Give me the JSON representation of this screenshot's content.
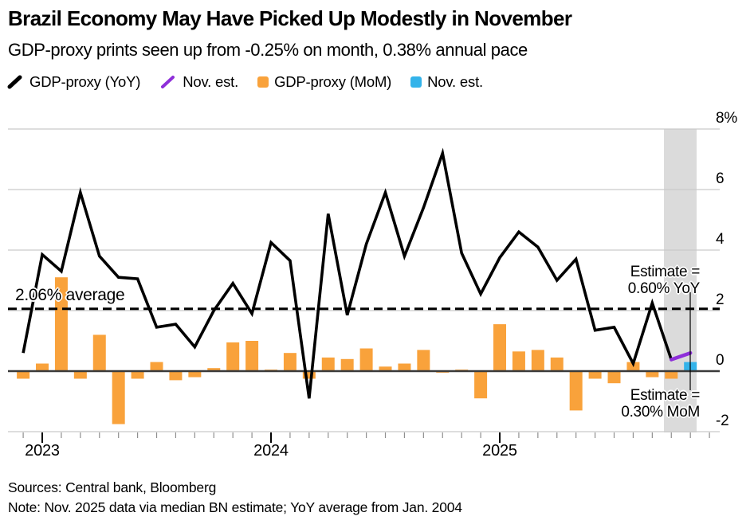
{
  "header": {
    "title": "Brazil Economy May Have Picked Up Modestly in November",
    "subtitle": "GDP-proxy prints seen up from -0.25% on month, 0.38% annual pace"
  },
  "legend": [
    {
      "label": "GDP-proxy (YoY)",
      "icon": "black-line-slash-icon",
      "shape": "slash",
      "color": "#000000"
    },
    {
      "label": "Nov. est.",
      "icon": "purple-line-slash-icon",
      "shape": "slash",
      "color": "#8E2FD9"
    },
    {
      "label": "GDP-proxy (MoM)",
      "icon": "orange-bar-swatch-icon",
      "shape": "square",
      "color": "#F9A23B"
    },
    {
      "label": "Nov. est.",
      "icon": "blue-bar-swatch-icon",
      "shape": "square",
      "color": "#33B3EA"
    }
  ],
  "chart_labels": {
    "average_label": "2.06% average"
  },
  "annotations": {
    "yoy": {
      "line1": "Estimate =",
      "line2": "0.60% YoY"
    },
    "mom": {
      "line1": "Estimate =",
      "line2": "0.30% MoM"
    }
  },
  "footer": {
    "sources": "Sources: Central bank, Bloomberg",
    "note": "Note: Nov. 2025 data via median BN estimate; YoY average from Jan. 2004"
  },
  "colors": {
    "line": "#000000",
    "line_estimate": "#8E2FD9",
    "bar": "#F9A23B",
    "bar_estimate": "#33B3EA",
    "grid": "#C9C9C9",
    "zero_line": "#3A3A3A",
    "highlight_band": "#DBDBDB",
    "tick_minor": "#8F8F8F",
    "tick_major": "#000000"
  },
  "chart_data": {
    "type": "line+bar",
    "title": "Brazil Economy May Have Picked Up Modestly in November",
    "ylim": [
      -2,
      8
    ],
    "grid": true,
    "legend_position": "top",
    "average_line": {
      "value": 2.06,
      "label": "2.06% average",
      "style": "dashed"
    },
    "highlight_band_months": [
      "Oct 2025",
      "Nov 2025"
    ],
    "months": [
      "Dec 2022",
      "Jan 2023",
      "Feb 2023",
      "Mar 2023",
      "Apr 2023",
      "May 2023",
      "Jun 2023",
      "Jul 2023",
      "Aug 2023",
      "Sep 2023",
      "Oct 2023",
      "Nov 2023",
      "Dec 2023",
      "Jan 2024",
      "Feb 2024",
      "Mar 2024",
      "Apr 2024",
      "May 2024",
      "Jun 2024",
      "Jul 2024",
      "Aug 2024",
      "Sep 2024",
      "Oct 2024",
      "Nov 2024",
      "Dec 2024",
      "Jan 2025",
      "Feb 2025",
      "Mar 2025",
      "Apr 2025",
      "May 2025",
      "Jun 2025",
      "Jul 2025",
      "Aug 2025",
      "Sep 2025",
      "Oct 2025",
      "Nov 2025"
    ],
    "series": [
      {
        "name": "GDP-proxy (YoY)",
        "type": "line",
        "values": [
          0.6,
          3.85,
          3.3,
          5.9,
          3.8,
          3.1,
          3.05,
          1.45,
          1.55,
          0.8,
          2.0,
          2.9,
          1.9,
          4.25,
          3.65,
          -0.9,
          5.2,
          1.85,
          4.2,
          5.9,
          3.8,
          5.4,
          7.2,
          3.9,
          2.55,
          3.75,
          4.6,
          4.1,
          3.0,
          3.7,
          1.35,
          1.45,
          0.25,
          2.25,
          0.38
        ]
      },
      {
        "name": "Nov. est. (YoY)",
        "type": "line-estimate",
        "from_month": "Oct 2025",
        "from_value": 0.38,
        "to_month": "Nov 2025",
        "estimate": 0.6
      },
      {
        "name": "GDP-proxy (MoM)",
        "type": "bar",
        "values": [
          -0.25,
          0.25,
          3.1,
          -0.25,
          1.2,
          -1.75,
          -0.25,
          0.3,
          -0.3,
          -0.2,
          0.1,
          0.95,
          1.0,
          0.05,
          0.6,
          -0.25,
          0.45,
          0.4,
          0.75,
          0.15,
          0.25,
          0.7,
          -0.05,
          0.05,
          -0.9,
          1.55,
          0.65,
          0.7,
          0.45,
          -1.3,
          -0.25,
          -0.4,
          0.3,
          -0.2,
          -0.25
        ]
      },
      {
        "name": "Nov. est. (MoM)",
        "type": "bar-estimate",
        "month": "Nov 2025",
        "estimate": 0.3
      }
    ],
    "y_axis": {
      "ticks": [
        {
          "label": "8%",
          "value": 8
        },
        {
          "label": "6",
          "value": 6
        },
        {
          "label": "4",
          "value": 4
        },
        {
          "label": "2",
          "value": 2
        },
        {
          "label": "0",
          "value": 0
        },
        {
          "label": "-2",
          "value": -2
        }
      ]
    },
    "x_axis": {
      "year_ticks": [
        {
          "label": "2023",
          "month_index": 1
        },
        {
          "label": "2024",
          "month_index": 13
        },
        {
          "label": "2025",
          "month_index": 25
        }
      ],
      "minor_tick_count": 37
    }
  }
}
